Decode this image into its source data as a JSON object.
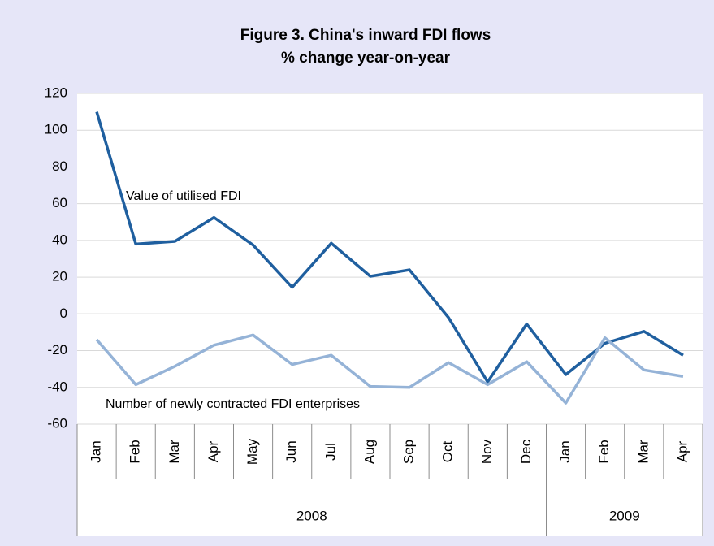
{
  "chart_data": {
    "type": "line",
    "title": "Figure 3. China's inward FDI flows",
    "subtitle": "% change year-on-year",
    "groups": [
      {
        "label": "2008",
        "categories": [
          "Jan",
          "Feb",
          "Mar",
          "Apr",
          "May",
          "Jun",
          "Jul",
          "Aug",
          "Sep",
          "Oct",
          "Nov",
          "Dec"
        ]
      },
      {
        "label": "2009",
        "categories": [
          "Jan",
          "Feb",
          "Mar",
          "Apr"
        ]
      }
    ],
    "series": [
      {
        "name": "Value of utilised FDI",
        "color": "#1f5f9f",
        "values": [
          110,
          38,
          39.5,
          52.5,
          37.5,
          14.5,
          38.5,
          20.5,
          24,
          -2,
          -37,
          -5.5,
          -33,
          -16,
          -9.5,
          -22.5
        ]
      },
      {
        "name": "Number of newly contracted FDI enterprises",
        "color": "#95b3d7",
        "values": [
          -14,
          -38.5,
          -28.5,
          -17,
          -11.5,
          -27.5,
          -22.5,
          -39.5,
          -40,
          -26.5,
          -38.5,
          -26,
          -48.5,
          -13,
          -30.5,
          -34
        ]
      }
    ],
    "ylim": [
      -60,
      120
    ],
    "yticks": [
      -60,
      -40,
      -20,
      0,
      20,
      40,
      60,
      80,
      100,
      120
    ],
    "grid": true
  }
}
